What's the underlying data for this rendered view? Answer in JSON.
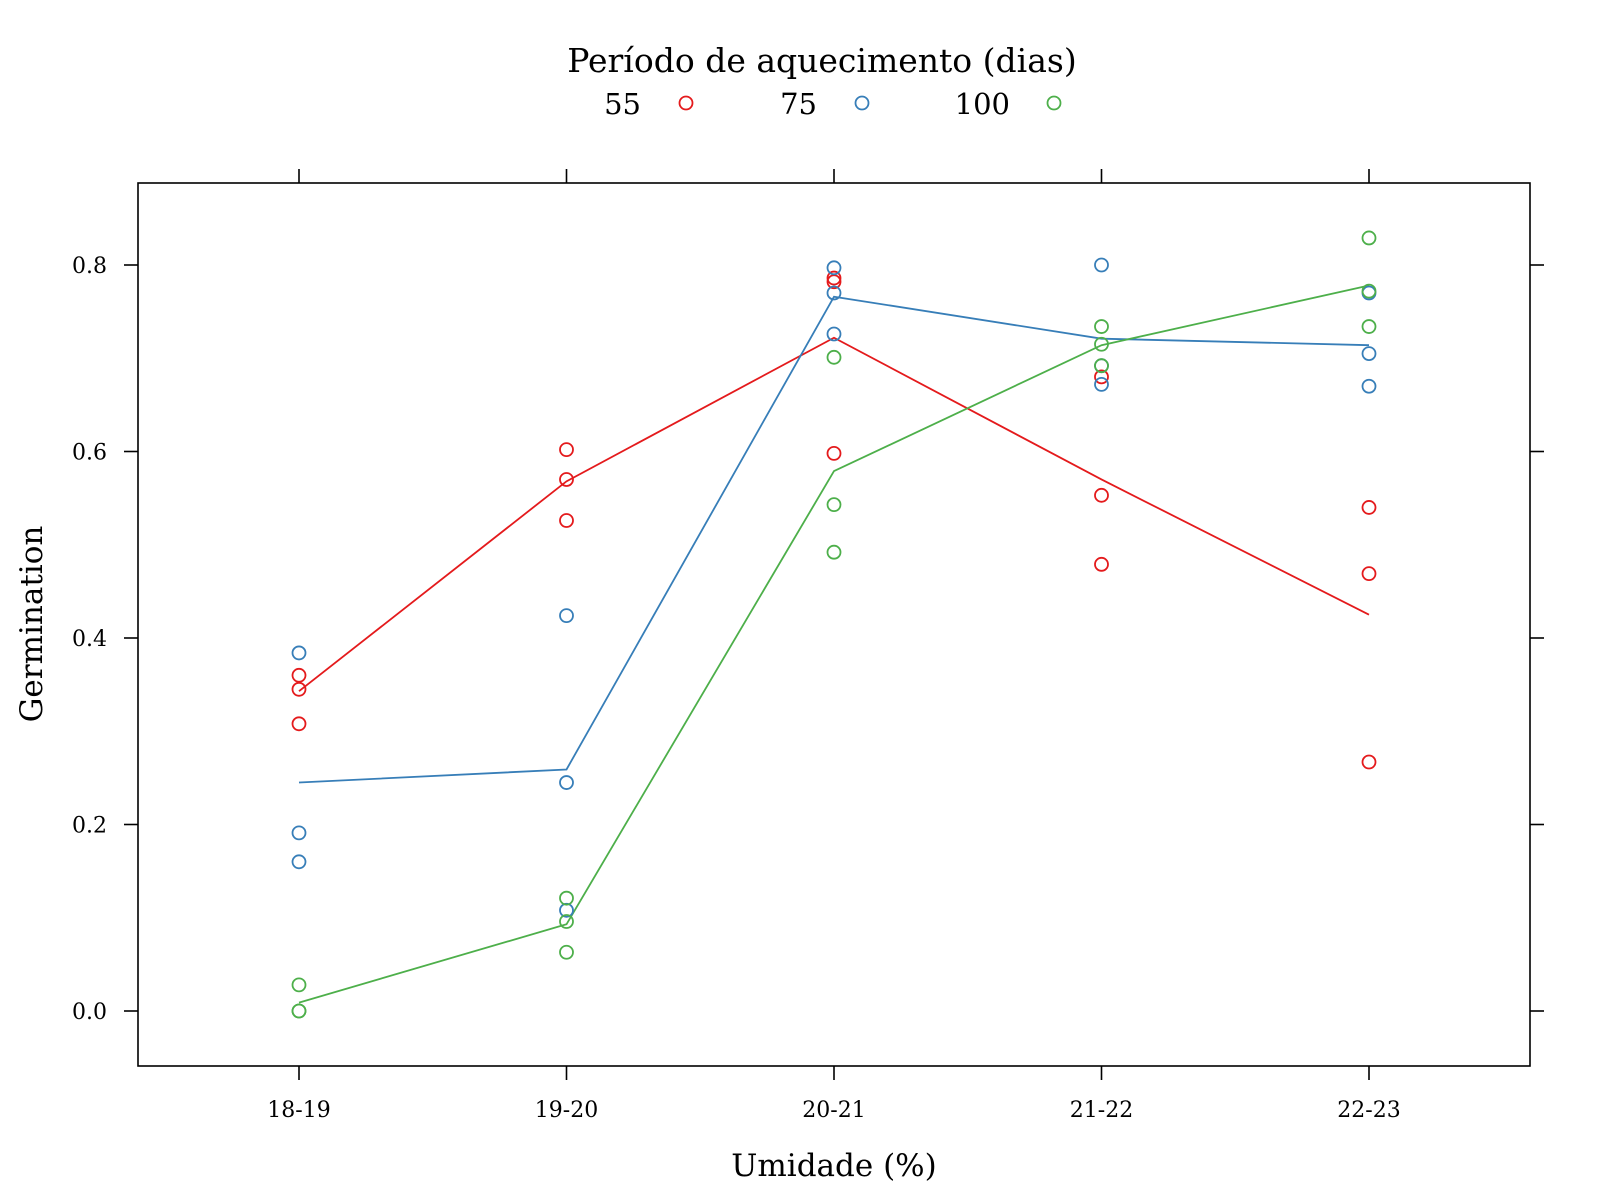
{
  "chart_data": {
    "type": "scatter",
    "xlabel": "Umidade (%)",
    "ylabel": "Germination",
    "categories": [
      "18-19",
      "19-20",
      "20-21",
      "21-22",
      "22-23"
    ],
    "ylim": [
      -0.06,
      0.88
    ],
    "yticks": [
      0.0,
      0.2,
      0.4,
      0.6,
      0.8
    ],
    "ytick_labels": [
      "0.0",
      "0.2",
      "0.4",
      "0.6",
      "0.8"
    ],
    "grid": false,
    "legend": {
      "title": "Período de aquecimento (dias)",
      "placement": "top-center"
    },
    "series": [
      {
        "name": "55",
        "color": "#e41a1c",
        "points": [
          [
            0.36,
            0.345,
            0.308
          ],
          [
            0.602,
            0.57,
            0.526
          ],
          [
            0.786,
            0.782,
            0.598
          ],
          [
            0.68,
            0.553,
            0.479
          ],
          [
            0.54,
            0.469,
            0.267
          ]
        ],
        "line": [
          0.343,
          0.568,
          0.722,
          0.57,
          0.425
        ]
      },
      {
        "name": "75",
        "color": "#377eb8",
        "points": [
          [
            0.384,
            0.191,
            0.16
          ],
          [
            0.424,
            0.245,
            0.108
          ],
          [
            0.797,
            0.77,
            0.726
          ],
          [
            0.8,
            0.692,
            0.672
          ],
          [
            0.77,
            0.705,
            0.67
          ]
        ],
        "line": [
          0.245,
          0.259,
          0.766,
          0.721,
          0.714
        ]
      },
      {
        "name": "100",
        "color": "#4daf4a",
        "points": [
          [
            0.028,
            0.0,
            0.0
          ],
          [
            0.121,
            0.096,
            0.063
          ],
          [
            0.701,
            0.543,
            0.492
          ],
          [
            0.734,
            0.715,
            0.692
          ],
          [
            0.829,
            0.772,
            0.734
          ]
        ],
        "line": [
          0.009,
          0.093,
          0.579,
          0.714,
          0.778
        ]
      }
    ]
  }
}
